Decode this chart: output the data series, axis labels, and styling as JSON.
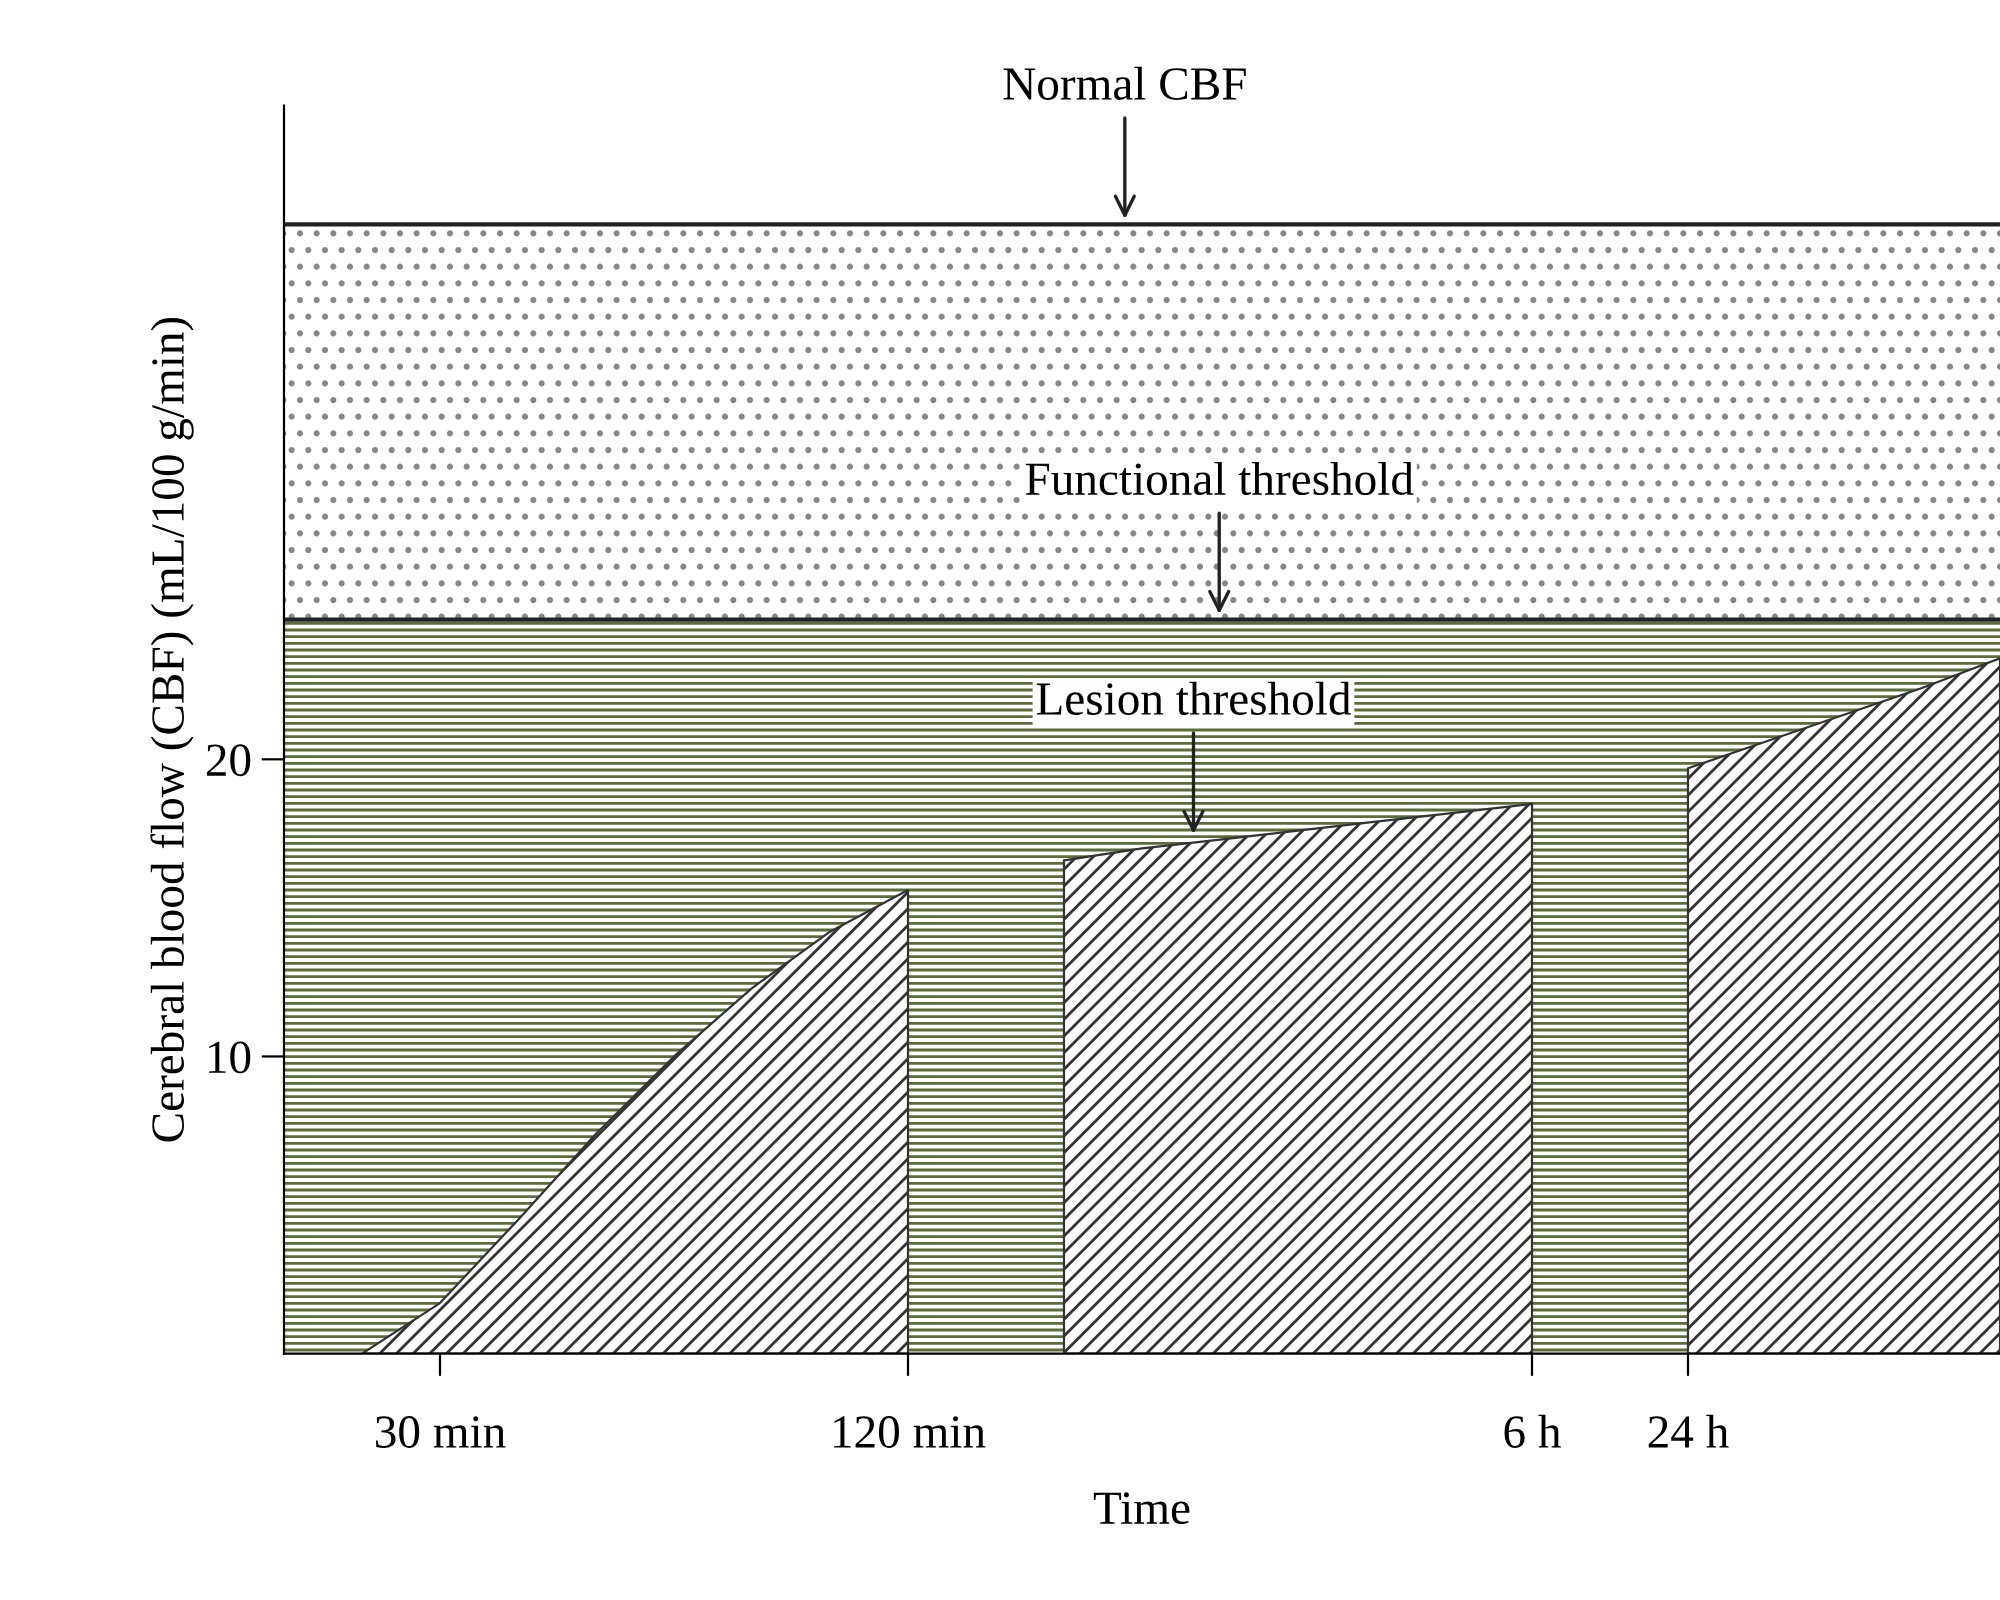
{
  "chart_data": {
    "type": "area",
    "xlabel": "Time",
    "ylabel": "Cerebral blood flow (CBF) (mL/100 g/min)",
    "categories": [
      null,
      null,
      "30 min",
      null,
      null,
      null,
      null,
      null,
      "120 min",
      null,
      null,
      null,
      null,
      null,
      null,
      null,
      "6 h",
      null,
      "24 h",
      null,
      null,
      null,
      null
    ],
    "series": [
      {
        "color": "#333333",
        "values": [
          null,
          0,
          1.7,
          4.5,
          7.4,
          10.0,
          12.3,
          14.2,
          15.6,
          null,
          16.6,
          17.0,
          17.3,
          17.6,
          17.9,
          18.2,
          18.5,
          null,
          19.7,
          20.6,
          21.5,
          22.4,
          23.4
        ]
      }
    ],
    "ylim": [
      0,
      42
    ],
    "yticks": [
      10,
      20
    ],
    "ref_lines": [
      {
        "axis": "y",
        "value": 38,
        "label": "Normal CBF",
        "color": "#222222"
      },
      {
        "axis": "y",
        "value": 24.7,
        "label": "Functional threshold",
        "color": "#222222"
      }
    ],
    "bands": [
      {
        "axis": "y",
        "from": 24.7,
        "to": 38,
        "color": "#888888"
      },
      {
        "axis": "y",
        "from": 0,
        "to": 24.7,
        "color": "#5a6e3a"
      }
    ],
    "annotations": [
      {
        "text": "Lesion threshold",
        "y": 17.3
      }
    ],
    "grid": false
  }
}
